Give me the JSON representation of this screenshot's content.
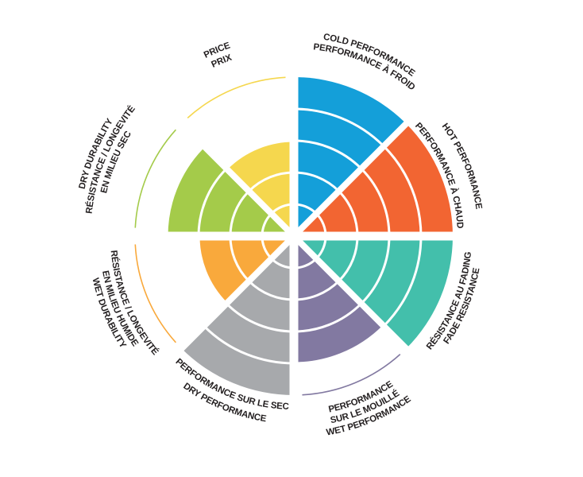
{
  "chart_data": {
    "type": "polar-area",
    "max_level": 5,
    "grid": true,
    "categories": [
      {
        "key": "cold",
        "value": 5,
        "color": "#149fd9",
        "label_lines": [
          "COLD PERFORMANCE",
          "PERFORMANCE À FROID"
        ]
      },
      {
        "key": "hot",
        "value": 5,
        "color": "#f26532",
        "label_lines": [
          "HOT PERFORMANCE",
          "PERFORMANCE À CHAUD"
        ]
      },
      {
        "key": "fade",
        "value": 5,
        "color": "#43bfab",
        "label_lines": [
          "RÉSISTANCE AU FADING",
          "FADE RESISTANCE"
        ]
      },
      {
        "key": "wet-performance",
        "value": 4,
        "color": "#8279a1",
        "label_lines": [
          "PERFORMANCE",
          "SUR LE MOUILLÉ",
          "WET PERFORMANCE"
        ]
      },
      {
        "key": "dry-performance",
        "value": 5,
        "color": "#a7a9ac",
        "label_lines": [
          "PERFORMANCE SUR LE SEC",
          "DRY PERFORMANCE"
        ]
      },
      {
        "key": "wet-durability",
        "value": 3,
        "color": "#f9a93c",
        "label_lines": [
          "RÉSISTANCE / LONGEVITÉ",
          "EN MILIEU HUMIDE",
          "WET DURABILITY"
        ]
      },
      {
        "key": "dry-durability",
        "value": 4,
        "color": "#a4cb4a",
        "label_lines": [
          "DRY DURABILITY",
          "RÉSISTANCE / LONGEVITÉ",
          "EN MILIEU SEC"
        ]
      },
      {
        "key": "price",
        "value": 3,
        "color": "#f5d74e",
        "label_lines": [
          "PRICE",
          "PRIX"
        ]
      }
    ]
  }
}
